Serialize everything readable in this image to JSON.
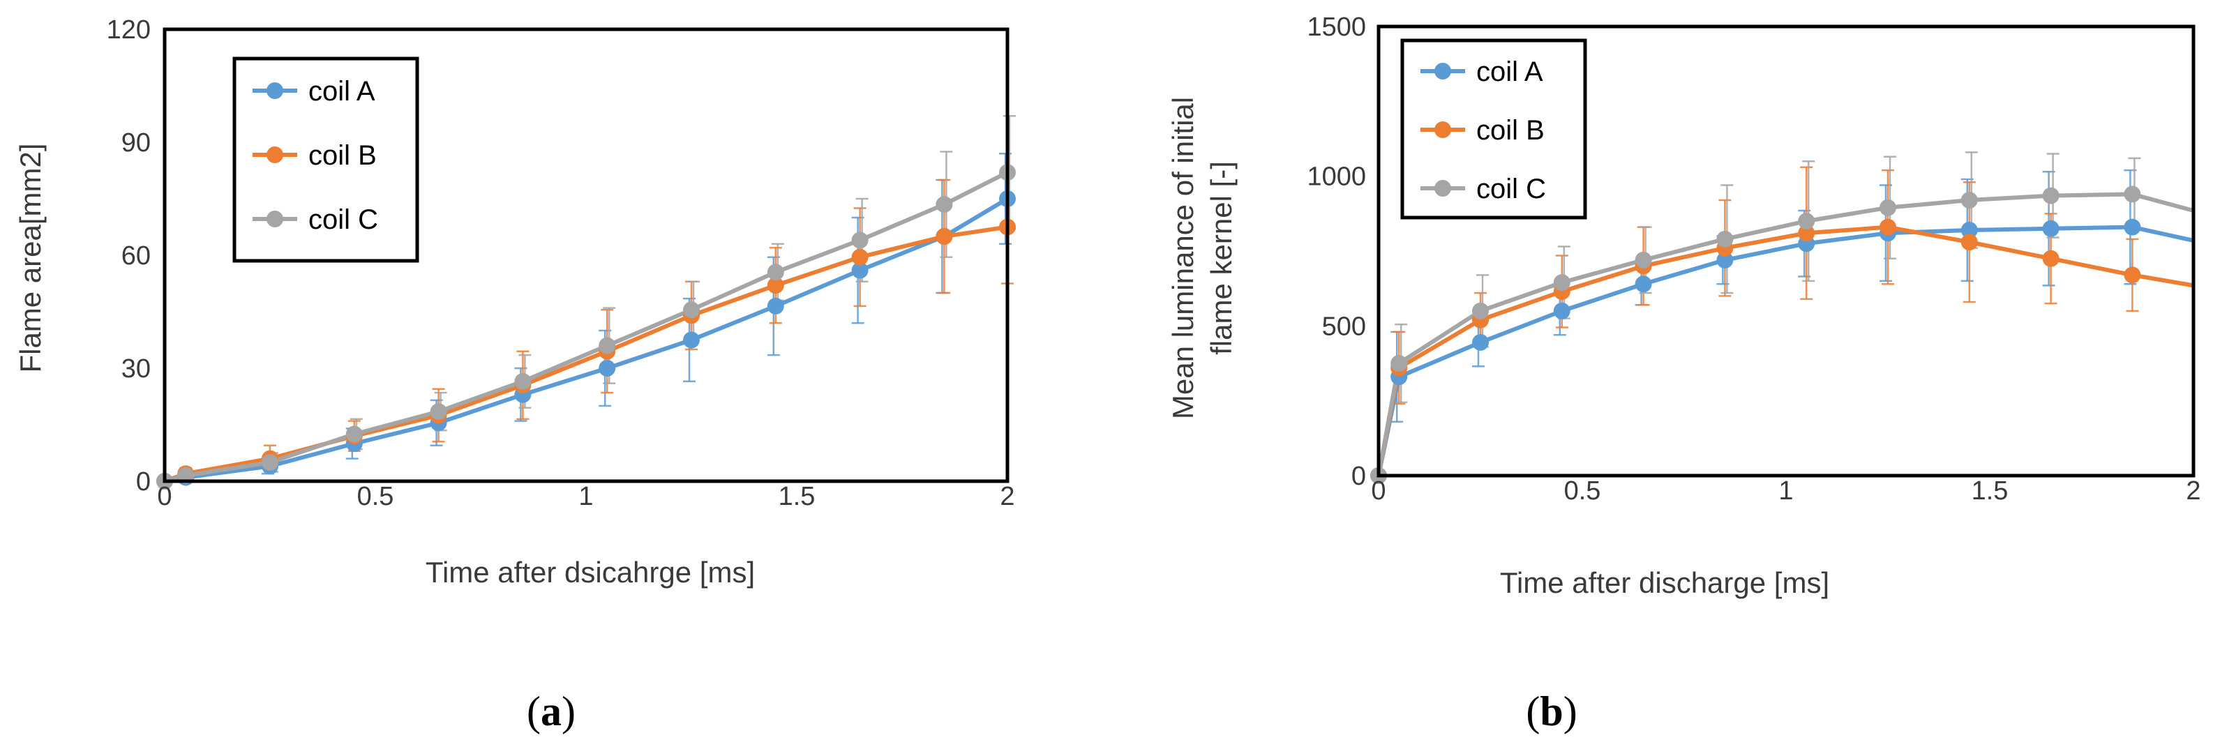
{
  "chart_data": [
    {
      "type": "line",
      "panel_label_paren_open": "(",
      "panel_label": "a",
      "panel_label_paren_close": ")",
      "xlabel": "Time after dsicahrge [ms]",
      "ylabel": "Flame area[mm2]",
      "xlim": [
        0,
        2
      ],
      "ylim": [
        0,
        120
      ],
      "xticks": [
        "0",
        "0.5",
        "1",
        "1.5",
        "2"
      ],
      "yticks": [
        "0",
        "30",
        "60",
        "90",
        "120"
      ],
      "legend_position": "top-left",
      "series": [
        {
          "name": "coil A",
          "color": "#5b9bd5",
          "x": [
            0,
            0.05,
            0.25,
            0.45,
            0.65,
            0.85,
            1.05,
            1.25,
            1.45,
            1.65,
            1.85,
            2.0
          ],
          "y": [
            0,
            1,
            4,
            10,
            15.5,
            23,
            30,
            37.5,
            46.5,
            56,
            65,
            75
          ],
          "err": [
            0,
            1,
            2,
            4,
            6,
            7,
            10,
            11,
            13,
            14,
            15,
            12
          ]
        },
        {
          "name": "coil B",
          "color": "#ed7d31",
          "x": [
            0,
            0.05,
            0.25,
            0.45,
            0.65,
            0.85,
            1.05,
            1.25,
            1.45,
            1.65,
            1.85,
            2.0
          ],
          "y": [
            0,
            2,
            6,
            12,
            17.5,
            25.5,
            34.5,
            44,
            52,
            59.5,
            65,
            67.5
          ],
          "err": [
            0,
            1.5,
            3.5,
            4,
            7,
            9,
            11,
            9,
            10,
            13,
            15,
            15
          ]
        },
        {
          "name": "coil C",
          "color": "#a5a5a5",
          "x": [
            0,
            0.05,
            0.25,
            0.45,
            0.65,
            0.85,
            1.05,
            1.25,
            1.45,
            1.65,
            1.85,
            2.0
          ],
          "y": [
            0,
            1.5,
            5,
            12.5,
            18.5,
            26.5,
            36,
            45.5,
            55.5,
            64,
            73.5,
            82
          ],
          "err": [
            0,
            1,
            2.5,
            4,
            5,
            7,
            10,
            7.5,
            7.5,
            11,
            14,
            15
          ]
        }
      ]
    },
    {
      "type": "line",
      "panel_label_paren_open": "(",
      "panel_label": "b",
      "panel_label_paren_close": ")",
      "xlabel": "Time after discharge [ms]",
      "ylabel_line1": "Mean luminance of initial",
      "ylabel_line2": "flame kernel [-]",
      "xlim": [
        0,
        2
      ],
      "ylim": [
        0,
        1500
      ],
      "xticks": [
        "0",
        "0.5",
        "1",
        "1.5",
        "2"
      ],
      "yticks": [
        "0",
        "500",
        "1000",
        "1500"
      ],
      "legend_position": "top-left",
      "series": [
        {
          "name": "coil A",
          "color": "#5b9bd5",
          "x": [
            0,
            0.05,
            0.25,
            0.45,
            0.65,
            0.85,
            1.05,
            1.25,
            1.45,
            1.65,
            1.85,
            2.0
          ],
          "y": [
            0,
            330,
            445,
            550,
            640,
            720,
            775,
            810,
            820,
            825,
            830,
            785
          ],
          "err": [
            0,
            150,
            80,
            80,
            70,
            80,
            110,
            160,
            170,
            190,
            190,
            0
          ]
        },
        {
          "name": "coil B",
          "color": "#ed7d31",
          "x": [
            0,
            0.05,
            0.25,
            0.45,
            0.65,
            0.85,
            1.05,
            1.25,
            1.45,
            1.65,
            1.85,
            2.0
          ],
          "y": [
            0,
            360,
            520,
            615,
            700,
            760,
            810,
            830,
            780,
            725,
            670,
            635
          ],
          "err": [
            0,
            120,
            90,
            120,
            130,
            160,
            220,
            190,
            200,
            150,
            120,
            0
          ]
        },
        {
          "name": "coil C",
          "color": "#a5a5a5",
          "x": [
            0,
            0.05,
            0.25,
            0.45,
            0.65,
            0.85,
            1.05,
            1.25,
            1.45,
            1.65,
            1.85,
            2.0
          ],
          "y": [
            0,
            375,
            550,
            645,
            720,
            790,
            850,
            895,
            920,
            935,
            940,
            885
          ],
          "err": [
            0,
            130,
            120,
            120,
            110,
            180,
            200,
            170,
            160,
            140,
            120,
            0
          ]
        }
      ]
    }
  ]
}
